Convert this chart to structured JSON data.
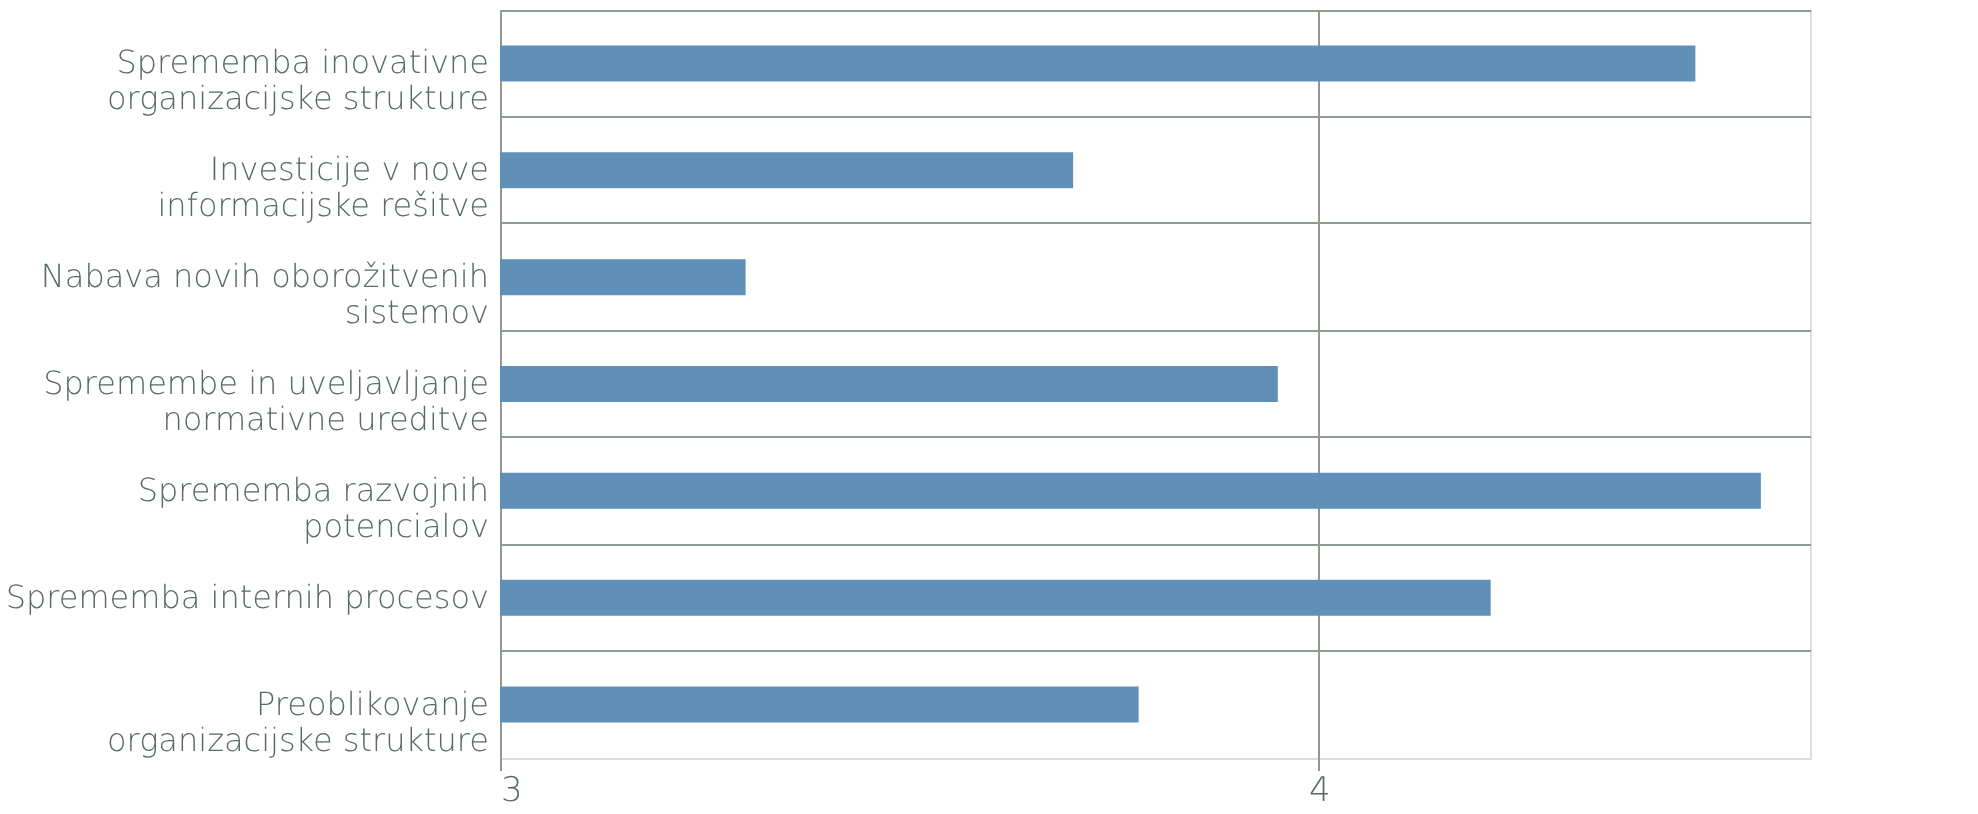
{
  "chart_data": {
    "type": "bar",
    "orientation": "horizontal",
    "categories": [
      "Sprememba inovativne organizacijske strukture",
      "Investicije v nove informacijske rešitve",
      "Nabava novih oborožitvenih sistemov",
      "Spremembe in uveljavljanje normativne ureditve",
      "Sprememba razvojnih potencialov",
      "Sprememba internih procesov",
      "Preoblikovanje organizacijske strukture"
    ],
    "values": [
      4.46,
      3.7,
      3.3,
      3.95,
      4.54,
      4.21,
      3.78
    ],
    "color": "#6090b8",
    "xlim": [
      3,
      4.6
    ],
    "xticks": [
      3,
      4
    ],
    "grid": true
  }
}
